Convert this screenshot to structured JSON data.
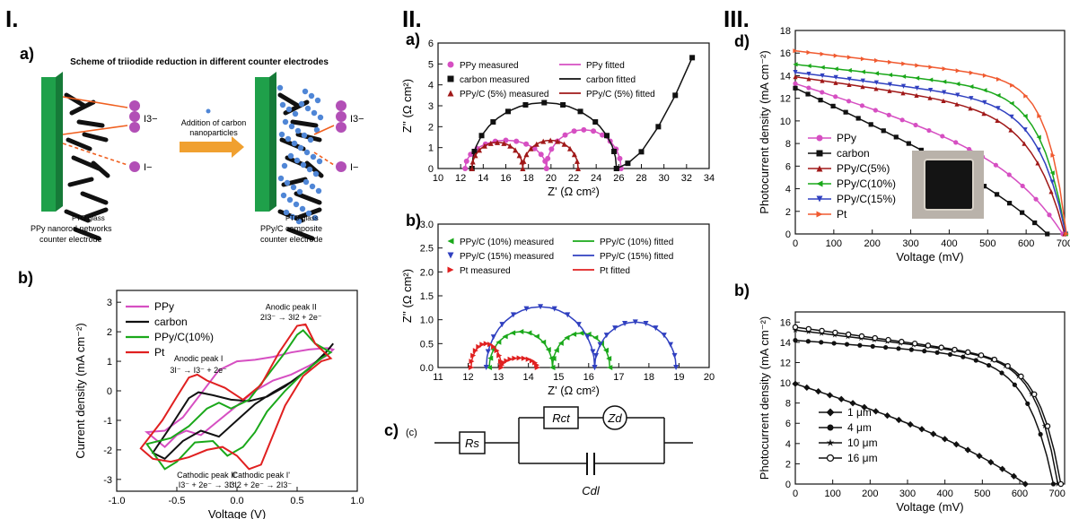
{
  "sections": {
    "s1": "I.",
    "s2": "II.",
    "s3": "III."
  },
  "scheme": {
    "panel_label": "a)",
    "title": "Scheme of triiodide reduction in different counter electrodes",
    "arrow_label_1": "Addition of carbon",
    "arrow_label_2": "nanoparticles",
    "fto_left": "FTO glass",
    "fto_right": "FTO glass",
    "caption_left_1": "PPy nanorod networks",
    "caption_left_2": "counter electrode",
    "caption_right_1": "PPy/C composite",
    "caption_right_2": "counter electrode",
    "i3_left": "I3−",
    "i_left": "I−",
    "i3_right": "I3−",
    "i_right": "I−",
    "colors": {
      "fto": "#1fa04a",
      "arrow": "#f0a030",
      "ion": "#b24fb6",
      "carbon": "#4f86d6"
    }
  },
  "diagram": {
    "panel_label": "c)",
    "sub_label": "(c)",
    "rs": "Rs",
    "rct": "Rct",
    "zd": "Zd",
    "cdl": "Cdl"
  },
  "chart_data": [
    {
      "id": "cv",
      "panel_label": "b)",
      "type": "line",
      "xlabel": "Voltage (V)",
      "ylabel": "Current density (mA cm⁻²)",
      "xlim": [
        -1.0,
        1.0
      ],
      "ylim": [
        -3.4,
        3.4
      ],
      "xticks": [
        -1.0,
        -0.5,
        0.0,
        0.5,
        1.0
      ],
      "yticks": [
        -3,
        -2,
        -1,
        0,
        1,
        2,
        3
      ],
      "xtick_labels": [
        "-1.0",
        "-0.5",
        "0.0",
        "0.5",
        "1.0"
      ],
      "ytick_labels": [
        "-3",
        "-2",
        "-1",
        "0",
        "1",
        "2",
        "3"
      ],
      "legend_position": "top-left",
      "annotations": [
        {
          "text": "Anodic peak II",
          "x": 0.45,
          "y": 2.75
        },
        {
          "text": "2I3⁻ → 3I2 + 2e⁻",
          "x": 0.45,
          "y": 2.4
        },
        {
          "text": "Anodic peak I",
          "x": -0.32,
          "y": 1.0
        },
        {
          "text": "3I⁻ → I3⁻ + 2e⁻",
          "x": -0.32,
          "y": 0.6
        },
        {
          "text": "Cathodic peak II'",
          "x": -0.25,
          "y": -2.95
        },
        {
          "text": "I3⁻ + 2e⁻ → 3I⁻",
          "x": -0.25,
          "y": -3.28
        },
        {
          "text": "Cathodic peak I'",
          "x": 0.2,
          "y": -2.95
        },
        {
          "text": "3I2 + 2e⁻ → 2I3⁻",
          "x": 0.2,
          "y": -3.28
        }
      ],
      "series": [
        {
          "name": "PPy",
          "color": "#d64fc2",
          "x": [
            -0.75,
            -0.6,
            -0.45,
            -0.3,
            -0.15,
            0.0,
            0.15,
            0.3,
            0.45,
            0.6,
            0.75,
            0.8,
            0.75,
            0.6,
            0.45,
            0.3,
            0.15,
            0.0,
            -0.15,
            -0.3,
            -0.42,
            -0.5,
            -0.6,
            -0.75
          ],
          "y": [
            -1.4,
            -1.35,
            -0.9,
            -0.1,
            0.7,
            1.0,
            1.05,
            1.15,
            1.3,
            1.4,
            1.45,
            1.4,
            1.2,
            0.85,
            0.55,
            0.35,
            0.0,
            -0.5,
            -1.0,
            -1.5,
            -1.35,
            -1.5,
            -1.9,
            -1.4
          ]
        },
        {
          "name": "carbon",
          "color": "#111111",
          "x": [
            -0.7,
            -0.55,
            -0.4,
            -0.32,
            -0.2,
            -0.05,
            0.1,
            0.25,
            0.4,
            0.55,
            0.7,
            0.8,
            0.75,
            0.6,
            0.45,
            0.3,
            0.15,
            0.0,
            -0.15,
            -0.3,
            -0.45,
            -0.6,
            -0.7
          ],
          "y": [
            -2.1,
            -1.2,
            -0.25,
            -0.05,
            -0.15,
            -0.3,
            -0.35,
            -0.2,
            0.15,
            0.6,
            1.1,
            1.6,
            1.35,
            0.75,
            0.3,
            -0.05,
            -0.45,
            -1.0,
            -1.55,
            -1.35,
            -1.7,
            -2.3,
            -2.1
          ]
        },
        {
          "name": "PPy/C(10%)",
          "color": "#1aa81a",
          "x": [
            -0.75,
            -0.55,
            -0.4,
            -0.25,
            -0.15,
            -0.05,
            0.1,
            0.25,
            0.4,
            0.5,
            0.55,
            0.65,
            0.78,
            0.7,
            0.55,
            0.4,
            0.25,
            0.15,
            0.05,
            -0.08,
            -0.2,
            -0.35,
            -0.5,
            -0.6,
            -0.75
          ],
          "y": [
            -1.8,
            -1.6,
            -1.2,
            -0.6,
            -0.4,
            -0.6,
            -0.3,
            0.5,
            1.3,
            1.9,
            2.05,
            1.6,
            1.3,
            1.1,
            0.6,
            0.0,
            -0.7,
            -1.4,
            -1.9,
            -2.2,
            -1.7,
            -1.75,
            -2.4,
            -2.65,
            -1.8
          ]
        },
        {
          "name": "Pt",
          "color": "#e02020",
          "x": [
            -0.8,
            -0.62,
            -0.5,
            -0.4,
            -0.33,
            -0.25,
            -0.1,
            0.05,
            0.2,
            0.35,
            0.5,
            0.57,
            0.65,
            0.78,
            0.7,
            0.55,
            0.4,
            0.3,
            0.2,
            0.1,
            0.0,
            -0.12,
            -0.25,
            -0.4,
            -0.55,
            -0.7,
            -0.8
          ],
          "y": [
            -1.95,
            -1.0,
            -0.2,
            0.45,
            0.55,
            0.35,
            0.1,
            -0.3,
            0.2,
            1.3,
            2.2,
            2.25,
            1.6,
            1.1,
            1.0,
            0.5,
            -0.5,
            -1.5,
            -2.5,
            -2.65,
            -2.2,
            -1.9,
            -2.0,
            -2.25,
            -2.4,
            -2.3,
            -1.95
          ]
        }
      ]
    },
    {
      "id": "nyq1",
      "panel_label": "a)",
      "type": "scatter",
      "xlabel": "Z' (Ω cm²)",
      "ylabel": "Z'' (Ω cm²)",
      "xlim": [
        10,
        34
      ],
      "ylim": [
        0,
        6
      ],
      "xticks": [
        10,
        12,
        14,
        16,
        18,
        20,
        22,
        24,
        26,
        28,
        30,
        32,
        34
      ],
      "yticks": [
        0,
        1,
        2,
        3,
        4,
        5,
        6
      ],
      "xtick_labels": [
        "10",
        "12",
        "14",
        "16",
        "18",
        "20",
        "22",
        "24",
        "26",
        "28",
        "30",
        "32",
        "34"
      ],
      "ytick_labels": [
        "0",
        "1",
        "2",
        "3",
        "4",
        "5",
        "6"
      ],
      "legend_position": "top-left",
      "legend_fitted": [
        "PPy fitted",
        "carbon fitted",
        "PPy/C (5%) fitted"
      ],
      "series": [
        {
          "name": "PPy measured",
          "color": "#d64fc2",
          "marker": "circle",
          "arcs": [
            {
              "x0": 12.4,
              "x1": 19.6,
              "h": 1.35
            },
            {
              "x0": 19.6,
              "x1": 26.2,
              "h": 1.85
            }
          ]
        },
        {
          "name": "carbon measured",
          "color": "#111111",
          "marker": "square",
          "arcs": [
            {
              "x0": 13.0,
              "x1": 25.8,
              "h": 3.15
            }
          ],
          "tail": [
            [
              25.8,
              0.0
            ],
            [
              26.8,
              0.25
            ],
            [
              28.0,
              0.8
            ],
            [
              29.5,
              2.0
            ],
            [
              31.0,
              3.5
            ],
            [
              32.5,
              5.3
            ]
          ]
        },
        {
          "name": "PPy/C (5%) measured",
          "color": "#a01818",
          "marker": "triangle",
          "arcs": [
            {
              "x0": 13.0,
              "x1": 17.5,
              "h": 1.25
            },
            {
              "x0": 17.5,
              "x1": 22.4,
              "h": 1.35
            }
          ]
        }
      ]
    },
    {
      "id": "nyq2",
      "panel_label": "b)",
      "type": "scatter",
      "xlabel": "Z' (Ω cm²)",
      "ylabel": "Z'' (Ω cm²)",
      "xlim": [
        11,
        20
      ],
      "ylim": [
        0,
        3.0
      ],
      "xticks": [
        11,
        12,
        13,
        14,
        15,
        16,
        17,
        18,
        19,
        20
      ],
      "yticks": [
        0,
        0.5,
        1.0,
        1.5,
        2.0,
        2.5,
        3.0
      ],
      "xtick_labels": [
        "11",
        "12",
        "13",
        "14",
        "15",
        "16",
        "17",
        "18",
        "19",
        "20"
      ],
      "ytick_labels": [
        "0.0",
        "0.5",
        "1.0",
        "1.5",
        "2.0",
        "2.5",
        "3.0"
      ],
      "legend_position": "top-left",
      "legend_fitted": [
        "PPy/C (10%) fitted",
        "PPy/C (15%) fitted",
        "Pt fitted"
      ],
      "series": [
        {
          "name": "PPy/C (10%) measured",
          "color": "#1aa81a",
          "marker": "triangle-left",
          "arcs": [
            {
              "x0": 12.7,
              "x1": 14.8,
              "h": 0.75
            },
            {
              "x0": 14.8,
              "x1": 16.7,
              "h": 0.72
            }
          ]
        },
        {
          "name": "PPy/C (15%) measured",
          "color": "#3040c0",
          "marker": "triangle-down",
          "arcs": [
            {
              "x0": 12.6,
              "x1": 16.2,
              "h": 1.27
            },
            {
              "x0": 16.2,
              "x1": 18.9,
              "h": 0.95
            }
          ]
        },
        {
          "name": "Pt measured",
          "color": "#e02020",
          "marker": "triangle-right",
          "arcs": [
            {
              "x0": 12.1,
              "x1": 13.1,
              "h": 0.5
            },
            {
              "x0": 13.1,
              "x1": 14.3,
              "h": 0.2
            }
          ]
        }
      ]
    },
    {
      "id": "jv1",
      "panel_label": "d)",
      "type": "line",
      "xlabel": "Voltage (mV)",
      "ylabel": "Photocurrent density (mA cm⁻²)",
      "xlim": [
        0,
        700
      ],
      "ylim": [
        0,
        18
      ],
      "xticks": [
        0,
        100,
        200,
        300,
        400,
        500,
        600,
        700
      ],
      "yticks": [
        0,
        2,
        4,
        6,
        8,
        10,
        12,
        14,
        16,
        18
      ],
      "xtick_labels": [
        "0",
        "100",
        "200",
        "300",
        "400",
        "500",
        "600",
        "700"
      ],
      "ytick_labels": [
        "0",
        "2",
        "4",
        "6",
        "8",
        "10",
        "12",
        "14",
        "16",
        "18"
      ],
      "legend_position": "bottom-left",
      "series": [
        {
          "name": "PPy",
          "color": "#d64fc2",
          "marker": "circle",
          "jsc": 13.3,
          "voc": 695,
          "slope": 3.2,
          "k": 0.2
        },
        {
          "name": "carbon",
          "color": "#111111",
          "marker": "square",
          "jsc": 12.9,
          "voc": 655,
          "slope": 4.9,
          "k": 0.25
        },
        {
          "name": "PPy/C(5%)",
          "color": "#a01818",
          "marker": "triangle",
          "jsc": 13.9,
          "voc": 700,
          "slope": 1.4,
          "k": 0.12
        },
        {
          "name": "PPy/C(10%)",
          "color": "#1aa81a",
          "marker": "triangle-left",
          "jsc": 15.0,
          "voc": 703,
          "slope": 1.0,
          "k": 0.09
        },
        {
          "name": "PPy/C(15%)",
          "color": "#3040c0",
          "marker": "triangle-down",
          "jsc": 14.3,
          "voc": 703,
          "slope": 1.2,
          "k": 0.1
        },
        {
          "name": "Pt",
          "color": "#f05a30",
          "marker": "triangle-right",
          "jsc": 16.2,
          "voc": 705,
          "slope": 1.0,
          "k": 0.07
        }
      ]
    },
    {
      "id": "jv2",
      "panel_label": "b)",
      "type": "line",
      "xlabel": "Voltage (mV)",
      "ylabel": "Photocurrent density (mA cm⁻²)",
      "xlim": [
        0,
        720
      ],
      "ylim": [
        0,
        17
      ],
      "xticks": [
        0,
        100,
        200,
        300,
        400,
        500,
        600,
        700
      ],
      "yticks": [
        0,
        2,
        4,
        6,
        8,
        10,
        12,
        14,
        16
      ],
      "xtick_labels": [
        "0",
        "100",
        "200",
        "300",
        "400",
        "500",
        "600",
        "700"
      ],
      "ytick_labels": [
        "0",
        "2",
        "4",
        "6",
        "8",
        "10",
        "12",
        "14",
        "16"
      ],
      "legend_position": "bottom-left",
      "series": [
        {
          "name": "1 μm",
          "color": "#111111",
          "marker": "diamond",
          "jsc": 9.9,
          "voc": 615,
          "slope": 4.5,
          "k": 0.35
        },
        {
          "name": "4 μm",
          "color": "#111111",
          "marker": "circle",
          "jsc": 14.2,
          "voc": 690,
          "slope": 0.8,
          "k": 0.1
        },
        {
          "name": "10 μm",
          "color": "#111111",
          "marker": "star",
          "jsc": 15.2,
          "voc": 702,
          "slope": 1.2,
          "k": 0.08
        },
        {
          "name": "16 μm",
          "color": "#111111",
          "marker": "half-circle",
          "jsc": 15.5,
          "voc": 710,
          "slope": 1.3,
          "k": 0.08
        }
      ]
    }
  ]
}
